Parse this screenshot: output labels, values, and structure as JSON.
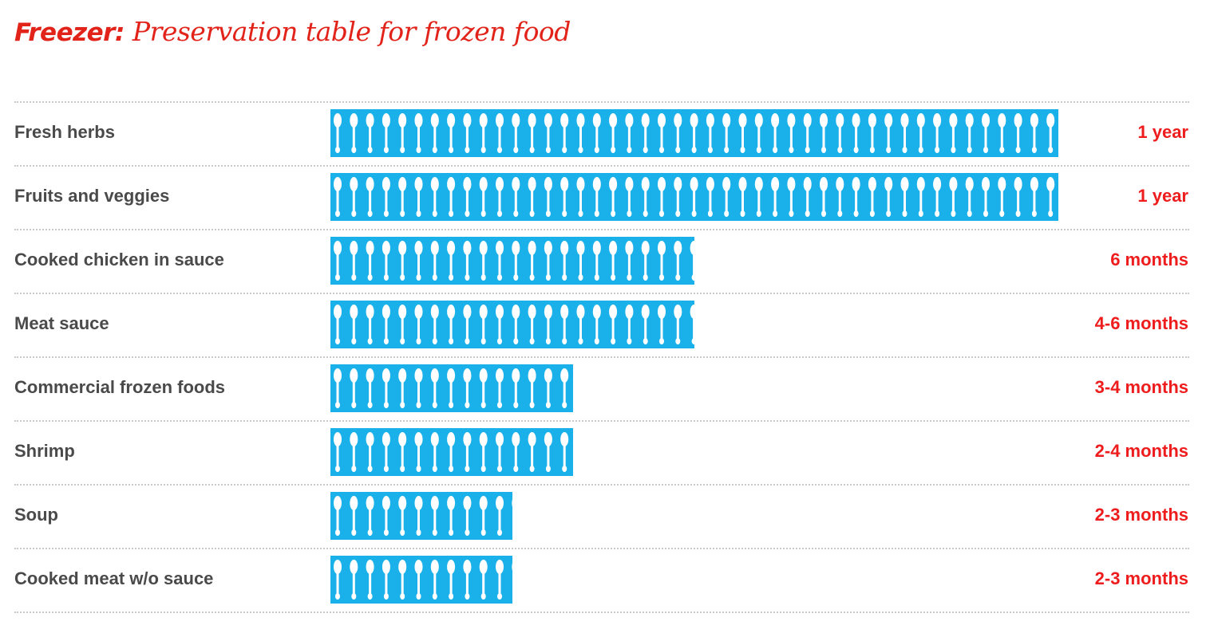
{
  "title": {
    "bold": "Freezer:",
    "rest": " Preservation table for frozen food"
  },
  "colors": {
    "bar": "#1ab0ea",
    "spoon": "#ffffff",
    "title": "#e2231a",
    "value": "#ee1c1c",
    "label": "#4a4a4a"
  },
  "icons": {
    "unit": "spoon-icon"
  },
  "chart_data": {
    "type": "bar",
    "orientation": "horizontal",
    "unit_note": "bar length in months",
    "categories": [
      "Fresh herbs",
      "Fruits and veggies",
      "Cooked chicken in sauce",
      "Meat sauce",
      "Commercial frozen foods",
      "Shrimp",
      "Soup",
      "Cooked meat w/o sauce"
    ],
    "values": [
      12,
      12,
      6,
      6,
      4,
      4,
      3,
      3
    ],
    "value_labels": [
      "1 year",
      "1 year",
      "6 months",
      "4-6 months",
      "3-4 months",
      "2-4 months",
      "2-3 months",
      "2-3 months"
    ],
    "xlim": [
      0,
      12
    ],
    "grid": false,
    "legend": "none"
  }
}
